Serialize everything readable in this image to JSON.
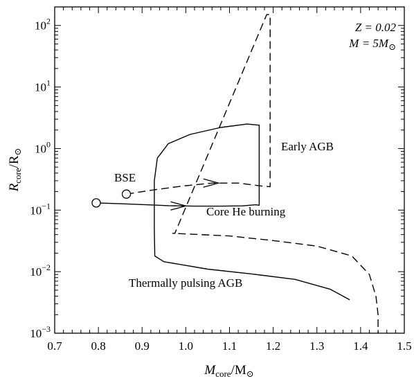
{
  "chart_data": {
    "type": "line",
    "xlabel": {
      "main": "M",
      "sub": "core",
      "unit_main": "/M",
      "unit_sub": "⊙"
    },
    "ylabel": {
      "main": "R",
      "sub": "core",
      "unit_main": "/R",
      "unit_sub": "⊙"
    },
    "x_scale": "linear",
    "y_scale": "log",
    "xlim": [
      0.7,
      1.5
    ],
    "ylim": [
      0.001,
      200
    ],
    "x_ticks": [
      0.7,
      0.8,
      0.9,
      1.0,
      1.1,
      1.2,
      1.3,
      1.4,
      1.5
    ],
    "x_tick_labels": [
      "0.7",
      "0.8",
      "0.9",
      "1.0",
      "1.1",
      "1.2",
      "1.3",
      "1.4",
      "1.5"
    ],
    "y_ticks": [
      0.001,
      0.01,
      0.1,
      1,
      10,
      100
    ],
    "y_tick_labels": [
      {
        "base": "10",
        "exp": "−3"
      },
      {
        "base": "10",
        "exp": "−2"
      },
      {
        "base": "10",
        "exp": "−1"
      },
      {
        "base": "10",
        "exp": "0"
      },
      {
        "base": "10",
        "exp": "1"
      },
      {
        "base": "10",
        "exp": "2"
      }
    ],
    "grid": false,
    "legend": null,
    "annotations": {
      "top_right_line1": "Z = 0.02",
      "top_right_line2": "M = 5M",
      "top_right_line2_sub": "⊙",
      "bse": "BSE",
      "early_agb": "Early AGB",
      "core_he": "Core He burning",
      "tp_agb": "Thermally pulsing AGB"
    },
    "series": [
      {
        "style": "solid",
        "points": [
          [
            0.795,
            0.131
          ],
          [
            0.85,
            0.127
          ],
          [
            0.9,
            0.123
          ],
          [
            0.925,
            0.121
          ],
          [
            0.96,
            0.118
          ],
          [
            1.02,
            0.116
          ],
          [
            1.08,
            0.116
          ],
          [
            1.13,
            0.117
          ],
          [
            1.16,
            0.122
          ],
          [
            1.168,
            0.12
          ],
          [
            1.168,
            0.6
          ],
          [
            1.168,
            2.4
          ],
          [
            1.14,
            2.5
          ],
          [
            1.08,
            2.2
          ],
          [
            1.01,
            1.7
          ],
          [
            0.96,
            1.2
          ],
          [
            0.935,
            0.7
          ],
          [
            0.928,
            0.3
          ],
          [
            0.928,
            0.05
          ],
          [
            0.929,
            0.018
          ],
          [
            0.95,
            0.0145
          ],
          [
            1.05,
            0.011
          ],
          [
            1.15,
            0.0092
          ],
          [
            1.25,
            0.0075
          ],
          [
            1.33,
            0.0052
          ],
          [
            1.375,
            0.0035
          ]
        ]
      },
      {
        "style": "dashed",
        "points": [
          [
            0.864,
            0.182
          ],
          [
            0.92,
            0.21
          ],
          [
            0.99,
            0.245
          ],
          [
            1.06,
            0.275
          ],
          [
            1.12,
            0.275
          ],
          [
            1.175,
            0.245
          ],
          [
            1.193,
            0.24
          ],
          [
            1.193,
            150
          ],
          [
            1.185,
            150
          ],
          [
            0.975,
            0.042
          ],
          [
            0.97,
            0.042
          ],
          [
            1.1,
            0.038
          ],
          [
            1.2,
            0.032
          ],
          [
            1.3,
            0.026
          ],
          [
            1.38,
            0.018
          ],
          [
            1.42,
            0.009
          ],
          [
            1.435,
            0.004
          ],
          [
            1.44,
            0.002
          ],
          [
            1.44,
            0.001
          ]
        ]
      }
    ],
    "start_markers": [
      [
        0.795,
        0.131
      ],
      [
        0.864,
        0.182
      ]
    ],
    "arrows": [
      {
        "at": [
          1.0,
          0.117
        ],
        "dir": [
          1,
          0
        ]
      },
      {
        "at": [
          1.075,
          0.275
        ],
        "dir": [
          1,
          0
        ]
      }
    ]
  }
}
